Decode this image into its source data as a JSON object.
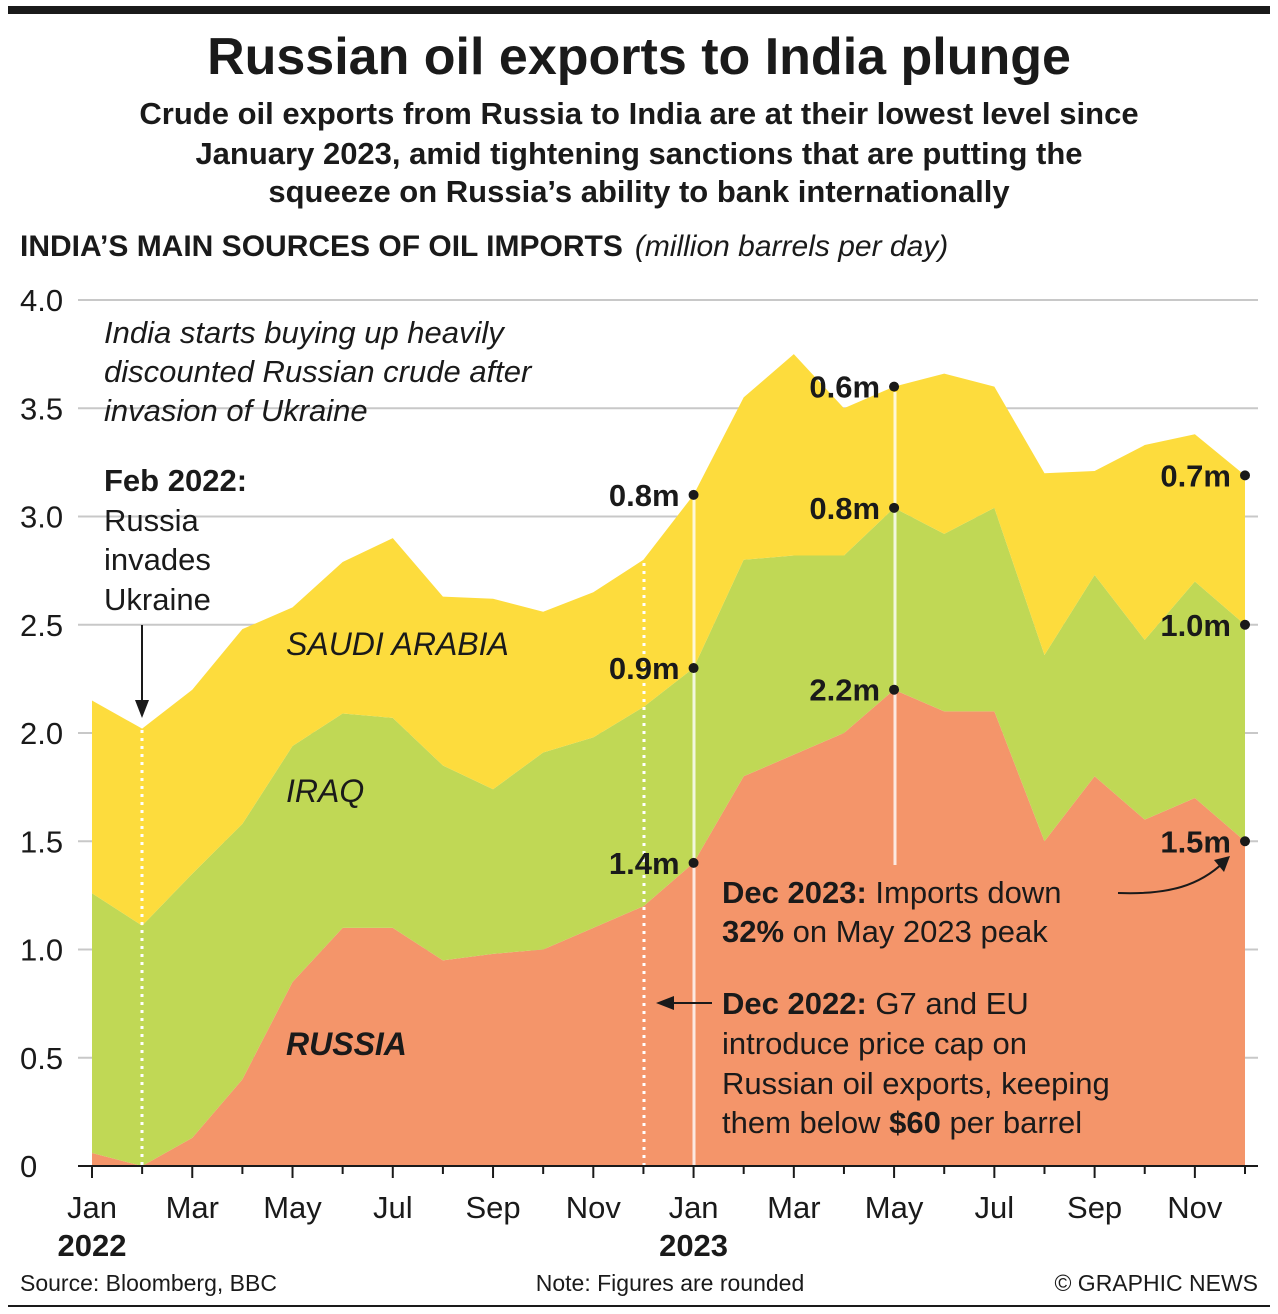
{
  "title": "Russian oil exports to India plunge",
  "subtitle": [
    "Crude oil exports from Russia to India are at their lowest level since",
    "January 2023, amid tightening sanctions that are putting the",
    "squeeze on Russia’s ability to bank internationally"
  ],
  "section_heading": "INDIA’S MAIN SOURCES OF OIL IMPORTS",
  "section_units": "(million barrels per day)",
  "chart_data": {
    "type": "area",
    "stacked": true,
    "title": "India's main sources of oil imports",
    "ylabel": "million barrels per day",
    "ylim": [
      0,
      4.0
    ],
    "yticks": [
      "0",
      "0.5",
      "1.0",
      "1.5",
      "2.0",
      "2.5",
      "3.0",
      "3.5",
      "4.0"
    ],
    "xtick_labels": [
      "Jan",
      "Mar",
      "May",
      "Jul",
      "Sep",
      "Nov",
      "Jan",
      "Mar",
      "May",
      "Jul",
      "Sep",
      "Nov"
    ],
    "year_labels": [
      "2022",
      "2023"
    ],
    "x": [
      "Jan 2022",
      "Feb 2022",
      "Mar 2022",
      "Apr 2022",
      "May 2022",
      "Jun 2022",
      "Jul 2022",
      "Aug 2022",
      "Sep 2022",
      "Oct 2022",
      "Nov 2022",
      "Dec 2022",
      "Jan 2023",
      "Feb 2023",
      "Mar 2023",
      "Apr 2023",
      "May 2023",
      "Jun 2023",
      "Jul 2023",
      "Aug 2023",
      "Sep 2023",
      "Oct 2023",
      "Nov 2023",
      "Dec 2023"
    ],
    "series": [
      {
        "name": "RUSSIA",
        "color": "#f4956a",
        "values": [
          0.06,
          0.0,
          0.13,
          0.4,
          0.85,
          1.1,
          1.1,
          0.95,
          0.98,
          1.0,
          1.1,
          1.2,
          1.4,
          1.8,
          1.9,
          2.0,
          2.2,
          2.1,
          2.1,
          1.5,
          1.8,
          1.6,
          1.7,
          1.5
        ]
      },
      {
        "name": "IRAQ",
        "color": "#c0d855",
        "values": [
          1.2,
          1.11,
          1.22,
          1.18,
          1.09,
          0.99,
          0.97,
          0.9,
          0.76,
          0.91,
          0.88,
          0.92,
          0.9,
          1.0,
          0.92,
          0.82,
          0.84,
          0.82,
          0.94,
          0.86,
          0.93,
          0.83,
          1.0,
          1.0
        ]
      },
      {
        "name": "SAUDI ARABIA",
        "color": "#fddc3d",
        "values": [
          0.89,
          0.91,
          0.85,
          0.9,
          0.64,
          0.7,
          0.83,
          0.78,
          0.88,
          0.65,
          0.67,
          0.68,
          0.8,
          0.75,
          0.93,
          0.68,
          0.56,
          0.74,
          0.56,
          0.84,
          0.48,
          0.9,
          0.68,
          0.69
        ]
      }
    ],
    "point_labels": [
      {
        "x": "Jan 2023",
        "series": "SAUDI ARABIA",
        "text": "0.8m"
      },
      {
        "x": "Jan 2023",
        "series": "IRAQ",
        "text": "0.9m"
      },
      {
        "x": "Jan 2023",
        "series": "RUSSIA",
        "text": "1.4m"
      },
      {
        "x": "May 2023",
        "series": "SAUDI ARABIA",
        "text": "0.6m"
      },
      {
        "x": "May 2023",
        "series": "IRAQ",
        "text": "0.8m"
      },
      {
        "x": "May 2023",
        "series": "RUSSIA",
        "text": "2.2m"
      },
      {
        "x": "Dec 2023",
        "series": "SAUDI ARABIA",
        "text": "0.7m"
      },
      {
        "x": "Dec 2023",
        "series": "IRAQ",
        "text": "1.0m"
      },
      {
        "x": "Dec 2023",
        "series": "RUSSIA",
        "text": "1.5m"
      }
    ],
    "annotations": {
      "india_buys": [
        "India starts buying up heavily",
        "discounted Russian crude after",
        "invasion of Ukraine"
      ],
      "feb2022_bold": "Feb 2022:",
      "feb2022": [
        "Russia",
        "invades",
        "Ukraine"
      ],
      "dec2023_bold": "Dec 2023:",
      "dec2023_rest": " Imports down",
      "dec2023_pct": "32%",
      "dec2023_rest2": " on May 2023 peak",
      "dec2022_bold": "Dec 2022:",
      "dec2022_rest": " G7 and EU",
      "dec2022_lines": [
        "introduce price cap on",
        "Russian oil exports, keeping"
      ],
      "dec2022_last_a": "them below ",
      "dec2022_last_b": "$60",
      "dec2022_last_c": " per barrel"
    }
  },
  "footer": {
    "source": "Source: Bloomberg, BBC",
    "note": "Note: Figures are rounded",
    "credit": "© GRAPHIC NEWS"
  }
}
